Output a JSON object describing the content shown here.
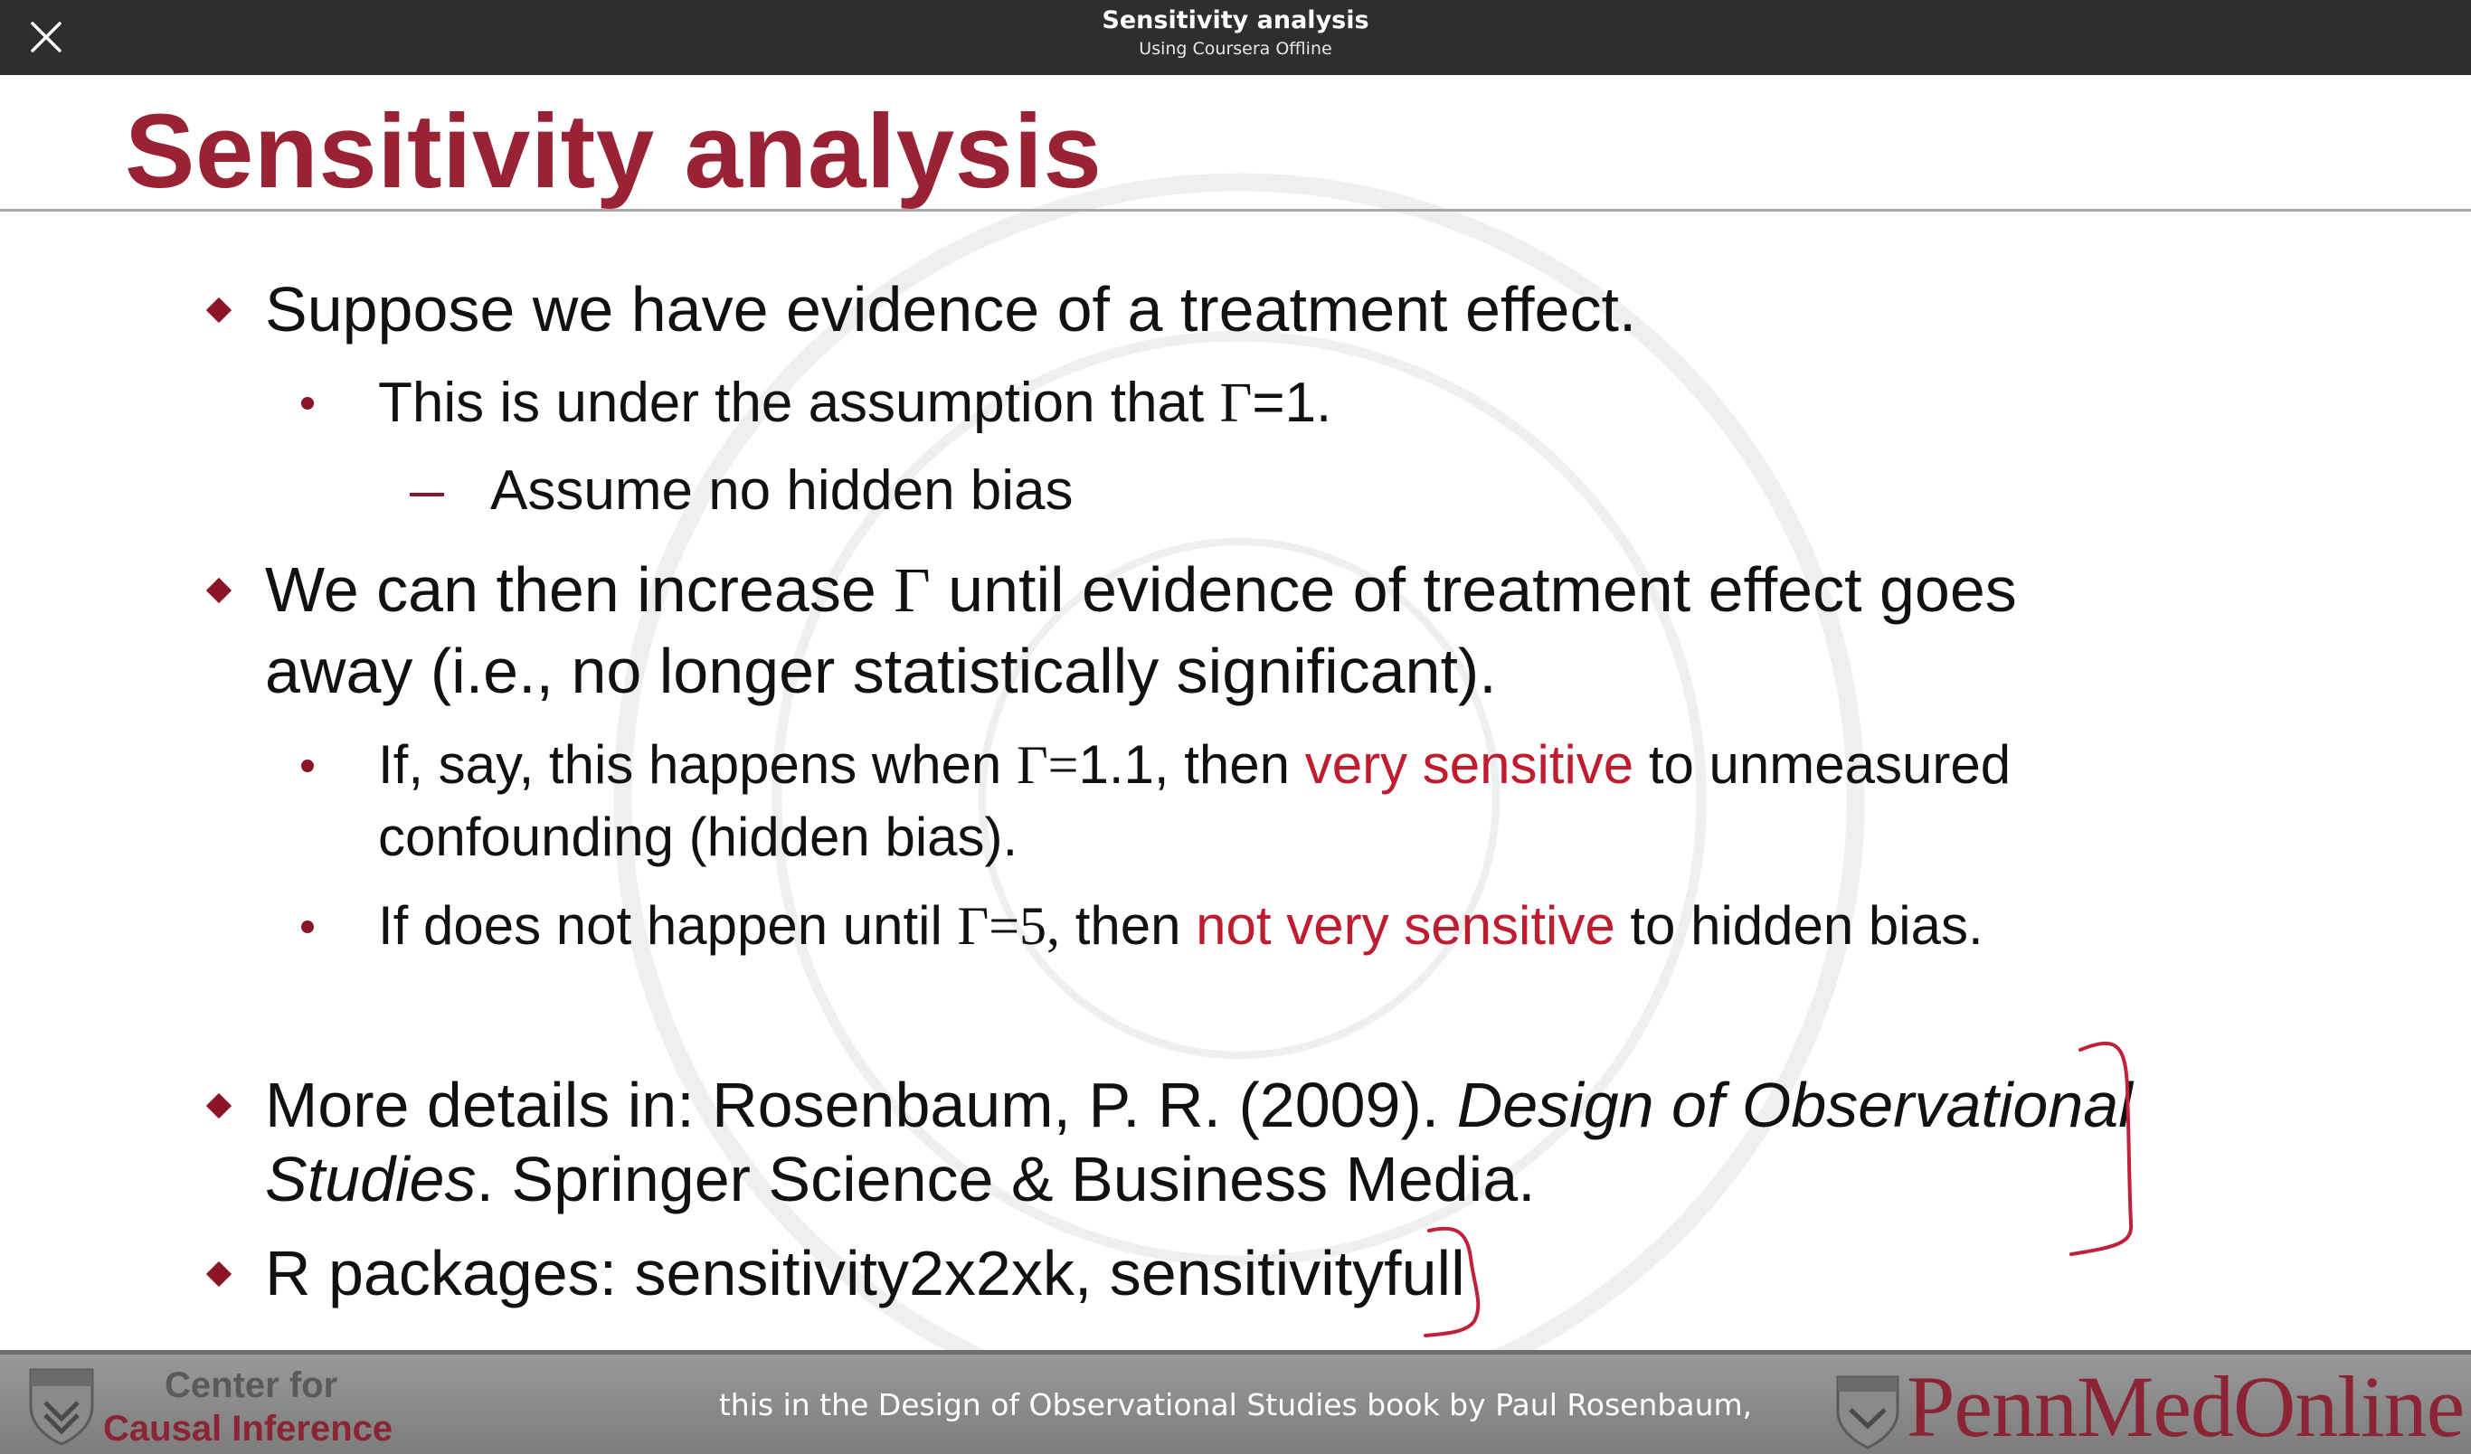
{
  "app_bar": {
    "title": "Sensitivity analysis",
    "subtitle": "Using Coursera Offline",
    "close_icon": "close-icon"
  },
  "slide": {
    "title": "Sensitivity analysis",
    "bullets": {
      "b1": "Suppose we have evidence of a treatment effect.",
      "b1_1_pre": "This is under the assumption that ",
      "b1_1_sym": "Γ",
      "b1_1_post": "=1.",
      "b1_1_1": "Assume no hidden bias",
      "b2_line1_pre": "We can then increase ",
      "b2_line1_sym": "Γ",
      "b2_line1_post": " until evidence of treatment effect goes",
      "b2_line2": "away (i.e., no longer statistically significant).",
      "b2_1_line1_pre": "If, say, this happens when ",
      "b2_1_line1_sym": "Γ=",
      "b2_1_line1_val": "1.1, then ",
      "b2_1_line1_red": "very sensitive",
      "b2_1_line1_post": " to unmeasured",
      "b2_1_line2": "confounding (hidden bias).",
      "b2_2_pre": "If does not happen until ",
      "b2_2_sym": "Γ=5,",
      "b2_2_mid": " then ",
      "b2_2_red": "not very sensitive",
      "b2_2_post": " to hidden bias.",
      "b3_line1_pre": "More details in: Rosenbaum, P. R. (2009). ",
      "b3_line1_ital": "Design of Observational",
      "b3_line2_ital": "Studies",
      "b3_line2_post": ". Springer Science & Business Media.",
      "b4": "R packages: sensitivity2x2xk, sensitivityfull"
    }
  },
  "footer": {
    "center_line1": "Center for",
    "center_line2": "Causal Inference",
    "caption": "this in the Design of Observational Studies book by Paul Rosenbaum,",
    "brand": "PennMedOnline"
  },
  "colors": {
    "title_red": "#9a2235",
    "accent_red": "#c01c30",
    "bullet_red": "#8b1426",
    "top_bar": "#2e2e2e",
    "footer_gray": "#8a8a8a"
  }
}
